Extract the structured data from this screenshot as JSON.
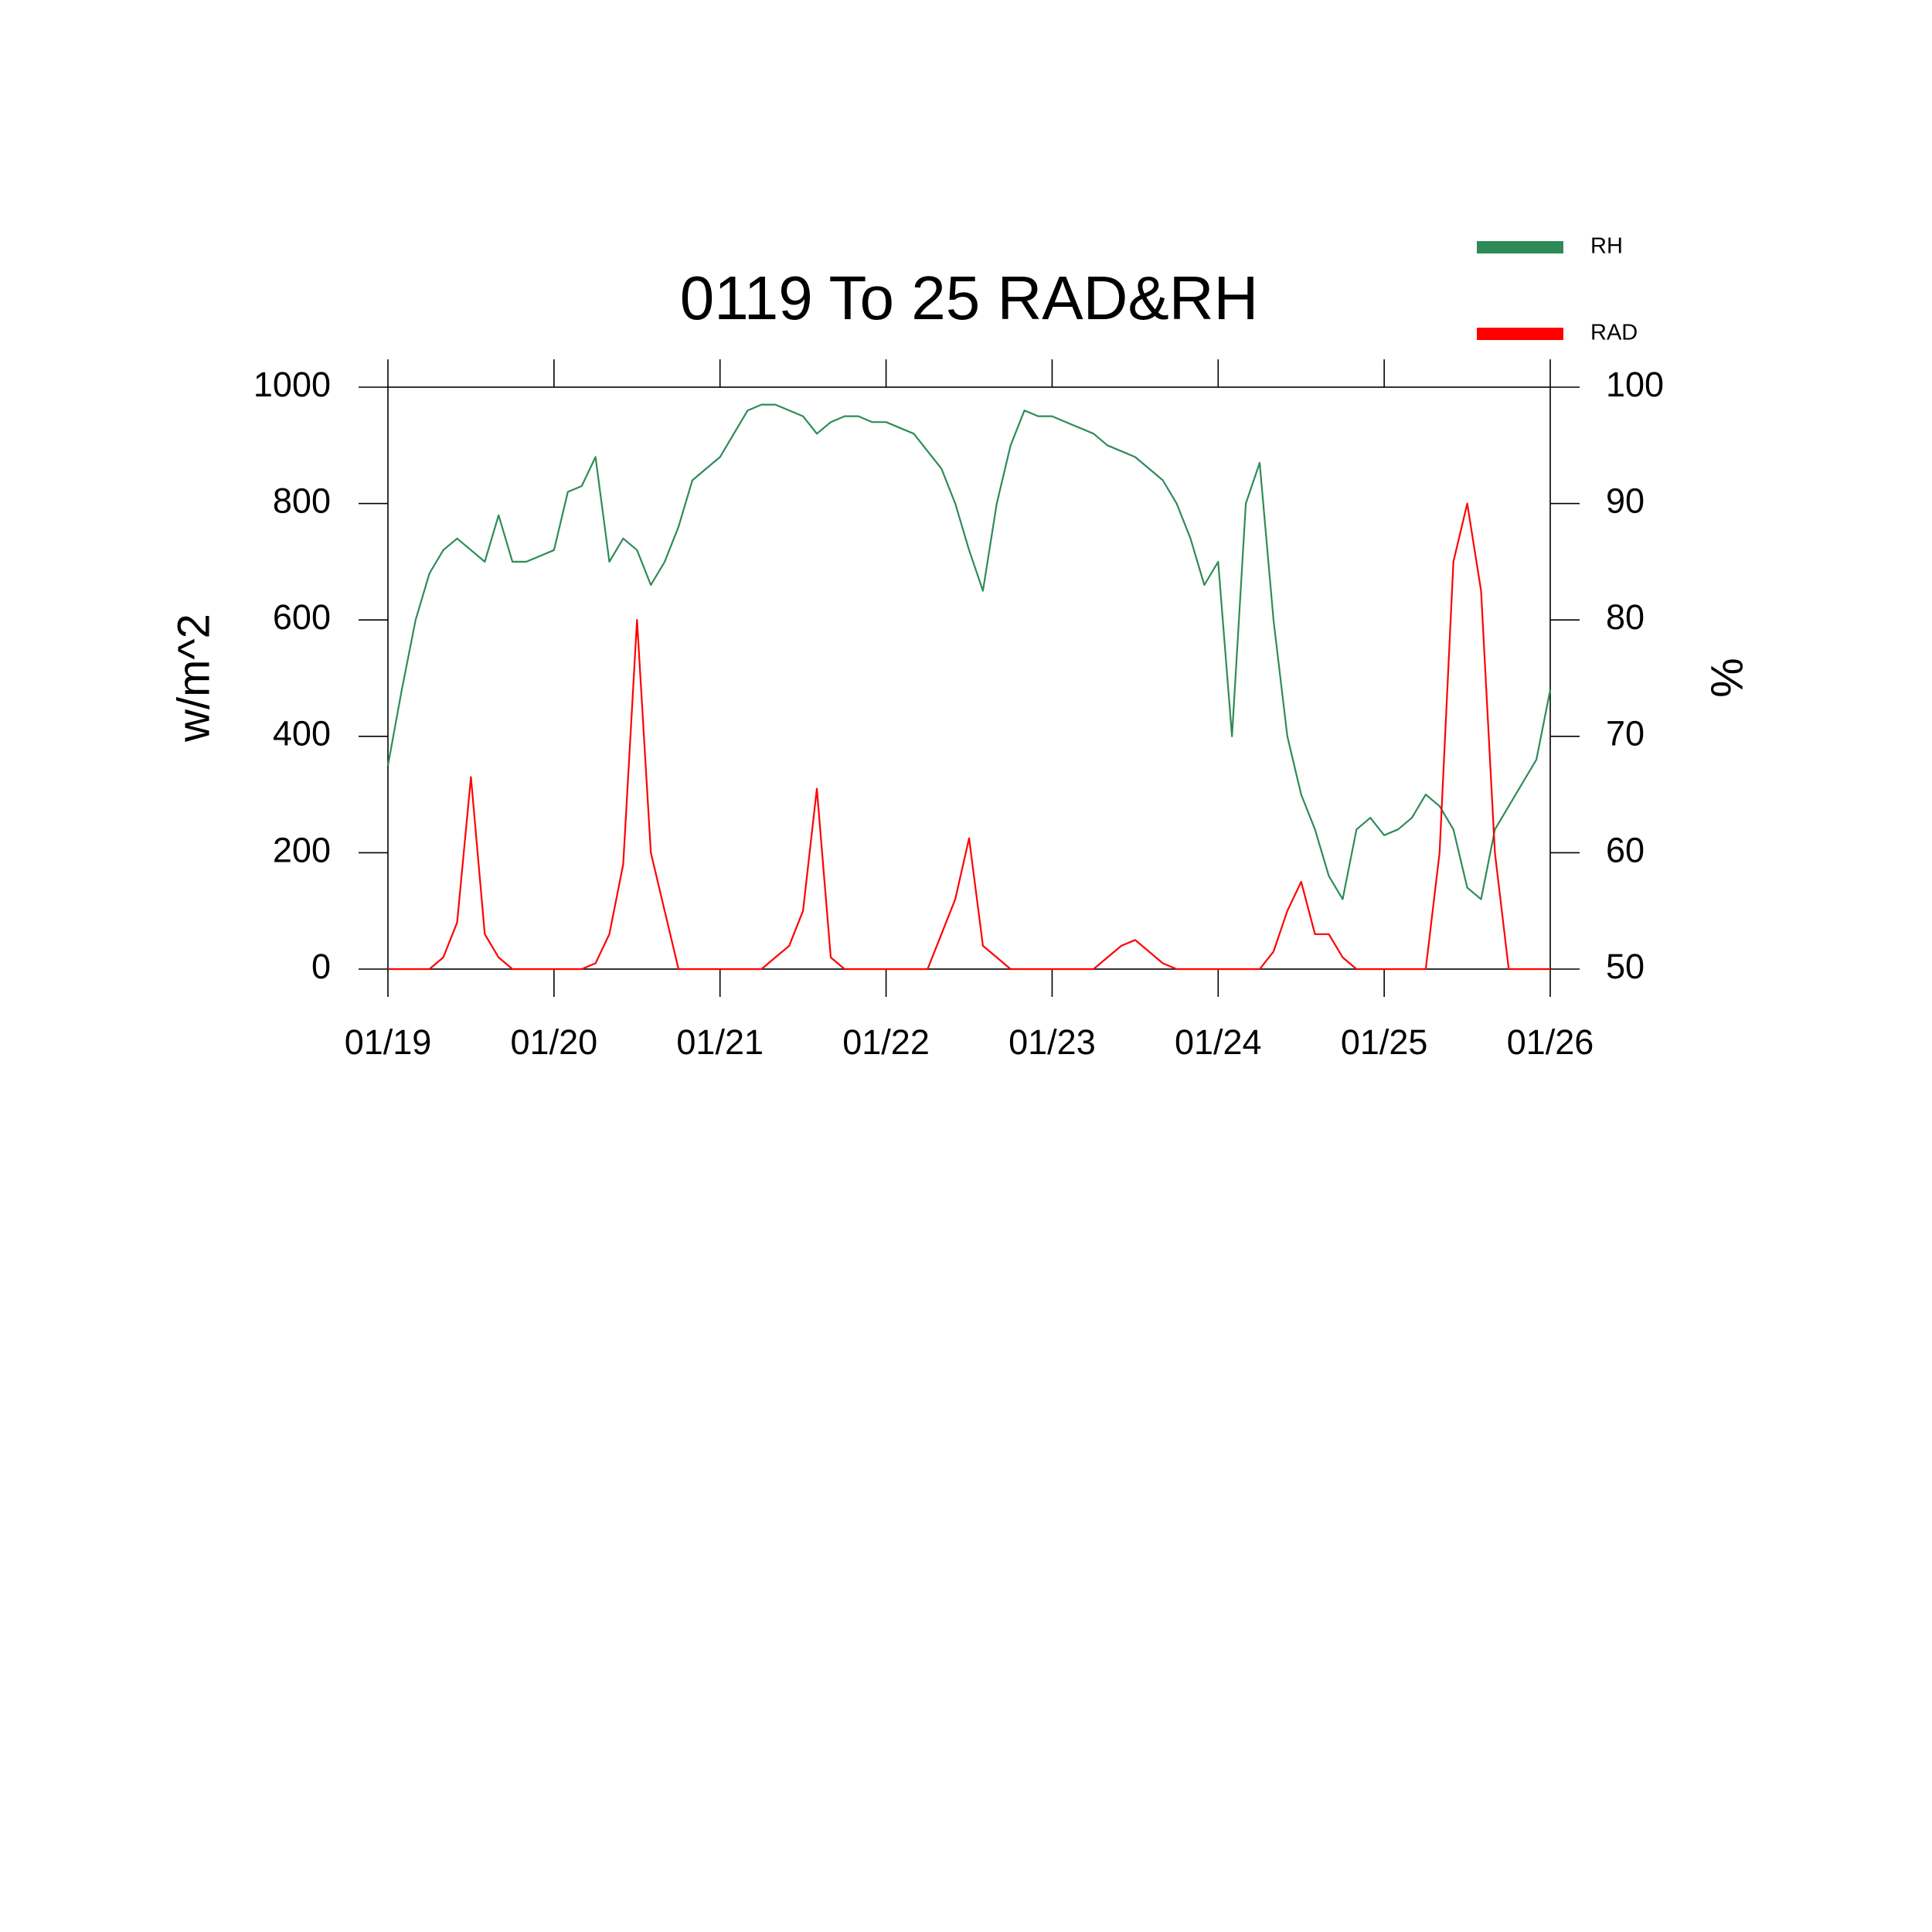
{
  "chart_data": {
    "type": "line",
    "title": "0119 To 25 RAD&RH",
    "ylabel": "w/m^2",
    "y2label": "%",
    "categories": [
      "01/19",
      null,
      null,
      null,
      null,
      null,
      null,
      null,
      null,
      null,
      null,
      null,
      "01/20",
      null,
      null,
      null,
      null,
      null,
      null,
      null,
      null,
      null,
      null,
      null,
      "01/21",
      null,
      null,
      null,
      null,
      null,
      null,
      null,
      null,
      null,
      null,
      null,
      "01/22",
      null,
      null,
      null,
      null,
      null,
      null,
      null,
      null,
      null,
      null,
      null,
      "01/23",
      null,
      null,
      null,
      null,
      null,
      null,
      null,
      null,
      null,
      null,
      null,
      "01/24",
      null,
      null,
      null,
      null,
      null,
      null,
      null,
      null,
      null,
      null,
      null,
      "01/25",
      null,
      null,
      null,
      null,
      null,
      null,
      null,
      null,
      null,
      null,
      null,
      "01/26"
    ],
    "ylim": [
      0,
      1000
    ],
    "yticks": [
      0,
      200,
      400,
      600,
      800,
      1000
    ],
    "y2lim": [
      50,
      100
    ],
    "y2ticks": [
      50,
      60,
      70,
      80,
      90,
      100
    ],
    "series": [
      {
        "name": "RH",
        "color": "#2e8b57",
        "axis": "y2",
        "values": [
          67.5,
          74,
          80,
          84,
          86,
          87,
          86,
          85,
          89,
          85,
          85,
          85.5,
          86,
          91,
          91.5,
          94,
          85,
          87,
          86,
          83,
          85,
          88,
          92,
          93,
          94,
          96,
          98,
          98.5,
          98.5,
          98,
          97.5,
          96,
          97,
          97.5,
          97.5,
          97,
          97,
          96.5,
          96,
          94.5,
          93,
          90,
          86,
          82.5,
          90,
          95,
          98,
          97.5,
          97.5,
          97,
          96.5,
          96,
          95,
          94.5,
          94,
          93,
          92,
          90,
          87,
          83,
          85,
          70,
          90,
          93.5,
          80,
          70,
          65,
          62,
          58,
          56,
          62,
          63,
          61.5,
          62,
          63,
          65,
          64,
          62,
          57,
          56,
          62,
          64,
          66,
          68,
          74
        ]
      },
      {
        "name": "RAD",
        "color": "#ff0000",
        "values": [
          0,
          0,
          0,
          0,
          20,
          80,
          330,
          60,
          20,
          0,
          0,
          0,
          0,
          0,
          0,
          10,
          60,
          180,
          600,
          200,
          100,
          0,
          0,
          0,
          0,
          0,
          0,
          0,
          20,
          40,
          100,
          310,
          20,
          0,
          0,
          0,
          0,
          0,
          0,
          0,
          60,
          120,
          225,
          40,
          20,
          0,
          0,
          0,
          0,
          0,
          0,
          0,
          20,
          40,
          50,
          30,
          10,
          0,
          0,
          0,
          0,
          0,
          0,
          0,
          30,
          100,
          150,
          60,
          60,
          20,
          0,
          0,
          0,
          0,
          0,
          0,
          200,
          700,
          800,
          650,
          200,
          0,
          0,
          0,
          0
        ]
      }
    ]
  }
}
